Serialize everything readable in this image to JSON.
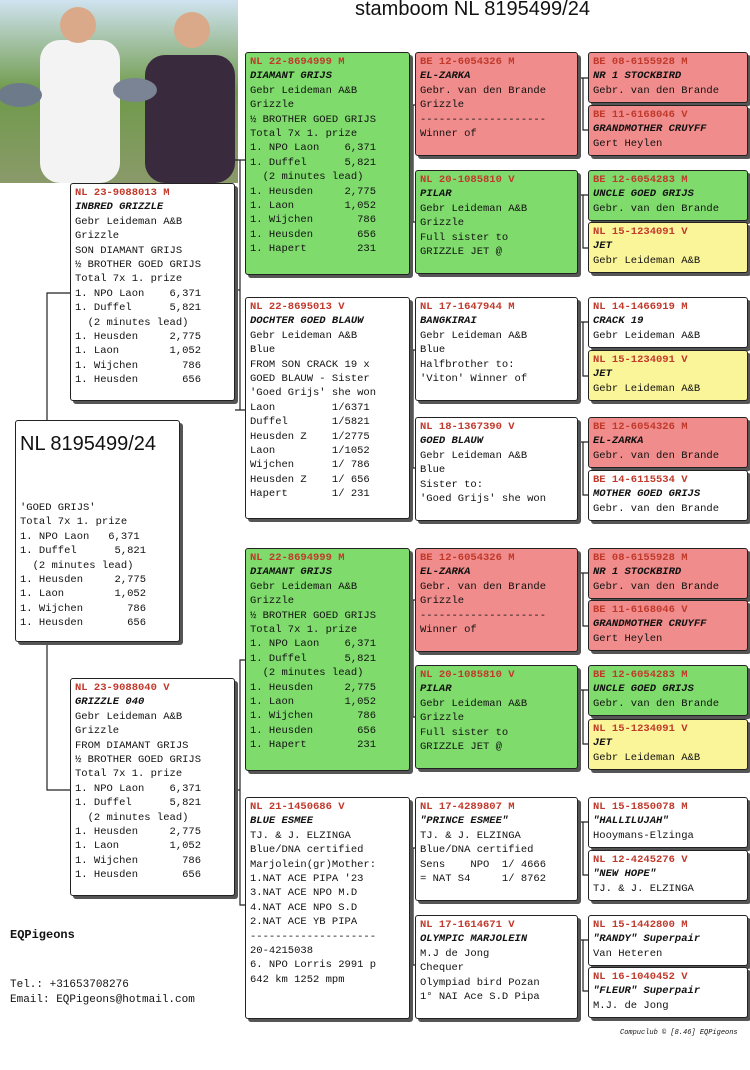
{
  "title": "stamboom NL 8195499/24",
  "subject": {
    "id": "NL 8195499/24",
    "lines": [
      "'GOED GRIJS'",
      "Total 7x 1. prize",
      "1. NPO Laon   6,371",
      "1. Duffel      5,821",
      "  (2 minutes lead)",
      "1. Heusden     2,775",
      "1. Laon        1,052",
      "1. Wijchen       786",
      "1. Heusden       656"
    ]
  },
  "sire": {
    "id": "NL 23-9088013 M",
    "name": "INBRED GRIZZLE",
    "lines": [
      "Gebr Leideman A&B",
      "Grizzle",
      "SON DIAMANT GRIJS",
      "½ BROTHER GOED GRIJS",
      "Total 7x 1. prize",
      "1. NPO Laon    6,371",
      "1. Duffel      5,821",
      "  (2 minutes lead)",
      "1. Heusden     2,775",
      "1. Laon        1,052",
      "1. Wijchen       786",
      "1. Heusden       656"
    ]
  },
  "dam": {
    "id": "NL 23-9088040 V",
    "name": "GRIZZLE 040",
    "lines": [
      "Gebr Leideman A&B",
      "Grizzle",
      "FROM DIAMANT GRIJS",
      "½ BROTHER GOED GRIJS",
      "Total 7x 1. prize",
      "1. NPO Laon    6,371",
      "1. Duffel      5,821",
      "  (2 minutes lead)",
      "1. Heusden     2,775",
      "1. Laon        1,052",
      "1. Wijchen       786",
      "1. Heusden       656"
    ]
  },
  "grandparents": [
    {
      "id": "NL 22-8694999 M",
      "name": "DIAMANT GRIJS",
      "lines": [
        "Gebr Leideman A&B",
        "Grizzle",
        "½ BROTHER GOED GRIJS",
        "Total 7x 1. prize",
        "1. NPO Laon    6,371",
        "1. Duffel      5,821",
        "  (2 minutes lead)",
        "1. Heusden     2,775",
        "1. Laon        1,052",
        "1. Wijchen       786",
        "1. Heusden       656",
        "1. Hapert        231"
      ]
    },
    {
      "id": "NL 22-8695013 V",
      "name": "DOCHTER GOED BLAUW",
      "lines": [
        "Gebr Leideman A&B",
        "Blue",
        "FROM SON CRACK 19 x",
        "GOED BLAUW - Sister",
        "'Goed Grijs' she won",
        "Laon         1/6371",
        "Duffel       1/5821",
        "Heusden Z    1/2775",
        "Laon         1/1052",
        "Wijchen      1/ 786",
        "Heusden Z    1/ 656",
        "Hapert       1/ 231"
      ]
    },
    {
      "id": "NL 22-8694999 M",
      "name": "DIAMANT GRIJS",
      "lines": [
        "Gebr Leideman A&B",
        "Grizzle",
        "½ BROTHER GOED GRIJS",
        "Total 7x 1. prize",
        "1. NPO Laon    6,371",
        "1. Duffel      5,821",
        "  (2 minutes lead)",
        "1. Heusden     2,775",
        "1. Laon        1,052",
        "1. Wijchen       786",
        "1. Heusden       656",
        "1. Hapert        231"
      ]
    },
    {
      "id": "NL 21-1450686 V",
      "name": "BLUE ESMEE",
      "lines": [
        "TJ. & J. ELZINGA",
        "Blue/DNA certified",
        "Marjolein(gr)Mother:",
        "1.NAT ACE PIPA '23",
        "3.NAT ACE NPO M.D",
        "4.NAT ACE NPO S.D",
        "2.NAT ACE YB PIPA",
        "--------------------",
        "20-4215038",
        "6. NPO Lorris 2991 p",
        "642 km 1252 mpm"
      ]
    }
  ],
  "great_grandparents": [
    {
      "id": "BE 12-6054326 M",
      "name": "EL-ZARKA",
      "lines": [
        "Gebr. van den Brande",
        "Grizzle",
        "--------------------",
        "Winner of"
      ]
    },
    {
      "id": "NL 20-1085810 V",
      "name": "PILAR",
      "lines": [
        "Gebr Leideman A&B",
        "Grizzle",
        "Full sister to",
        "GRIZZLE JET @"
      ]
    },
    {
      "id": "NL 17-1647944 M",
      "name": "BANGKIRAI",
      "lines": [
        "Gebr Leideman A&B",
        "Blue",
        "Halfbrother to:",
        "'Viton' Winner of"
      ]
    },
    {
      "id": "NL 18-1367390 V",
      "name": "GOED BLAUW",
      "lines": [
        "Gebr Leideman A&B",
        "Blue",
        "Sister to:",
        "'Goed Grijs' she won"
      ]
    },
    {
      "id": "BE 12-6054326 M",
      "name": "EL-ZARKA",
      "lines": [
        "Gebr. van den Brande",
        "Grizzle",
        "--------------------",
        "Winner of"
      ]
    },
    {
      "id": "NL 20-1085810 V",
      "name": "PILAR",
      "lines": [
        "Gebr Leideman A&B",
        "Grizzle",
        "Full sister to",
        "GRIZZLE JET @"
      ]
    },
    {
      "id": "NL 17-4289807 M",
      "name": "\"PRINCE ESMEE\"",
      "lines": [
        "TJ. & J. ELZINGA",
        "Blue/DNA certified",
        "Sens    NPO  1/ 4666",
        "= NAT S4     1/ 8762"
      ]
    },
    {
      "id": "NL 17-1614671 V",
      "name": "OLYMPIC MARJOLEIN",
      "lines": [
        "M.J de Jong",
        "Chequer",
        "Olympiad bird Pozan",
        "1° NAI Ace S.D Pipa"
      ]
    }
  ],
  "great_great_grandparents": [
    {
      "id": "BE 08-6155928 M",
      "name": "NR 1 STOCKBIRD",
      "lines": [
        "Gebr. van den Brande"
      ]
    },
    {
      "id": "BE 11-6168046 V",
      "name": "GRANDMOTHER CRUYFF",
      "lines": [
        "Gert Heylen"
      ]
    },
    {
      "id": "BE 12-6054283 M",
      "name": "UNCLE GOED GRIJS",
      "lines": [
        "Gebr. van den Brande"
      ]
    },
    {
      "id": "NL 15-1234091 V",
      "name": "JET",
      "lines": [
        "Gebr Leideman A&B"
      ]
    },
    {
      "id": "NL 14-1466919 M",
      "name": "CRACK 19",
      "lines": [
        "Gebr Leideman A&B"
      ]
    },
    {
      "id": "NL 15-1234091 V",
      "name": "JET",
      "lines": [
        "Gebr Leideman A&B"
      ]
    },
    {
      "id": "BE 12-6054326 M",
      "name": "EL-ZARKA",
      "lines": [
        "Gebr. van den Brande"
      ]
    },
    {
      "id": "BE 14-6115534 V",
      "name": "MOTHER GOED GRIJS",
      "lines": [
        "Gebr. van den Brande"
      ]
    },
    {
      "id": "BE 08-6155928 M",
      "name": "NR 1 STOCKBIRD",
      "lines": [
        "Gebr. van den Brande"
      ]
    },
    {
      "id": "BE 11-6168046 V",
      "name": "GRANDMOTHER CRUYFF",
      "lines": [
        "Gert Heylen"
      ]
    },
    {
      "id": "BE 12-6054283 M",
      "name": "UNCLE GOED GRIJS",
      "lines": [
        "Gebr. van den Brande"
      ]
    },
    {
      "id": "NL 15-1234091 V",
      "name": "JET",
      "lines": [
        "Gebr Leideman A&B"
      ]
    },
    {
      "id": "NL 15-1850078 M",
      "name": "\"HALLILUJAH\"",
      "lines": [
        "Hooymans-Elzinga"
      ]
    },
    {
      "id": "NL 12-4245276 V",
      "name": "\"NEW HOPE\"",
      "lines": [
        "TJ. & J. ELZINGA"
      ]
    },
    {
      "id": "NL 15-1442800 M",
      "name": "\"RANDY\" Superpair",
      "lines": [
        "Van Heteren"
      ]
    },
    {
      "id": "NL 16-1040452 V",
      "name": "\"FLEUR\" Superpair",
      "lines": [
        "M.J. de Jong"
      ]
    }
  ],
  "footer": {
    "brand": "EQPigeons",
    "phone": "Tel.: +31653708276",
    "email": "Email: EQPigeons@hotmail.com",
    "credit": "Compuclub © [8.46] EQPigeons"
  }
}
